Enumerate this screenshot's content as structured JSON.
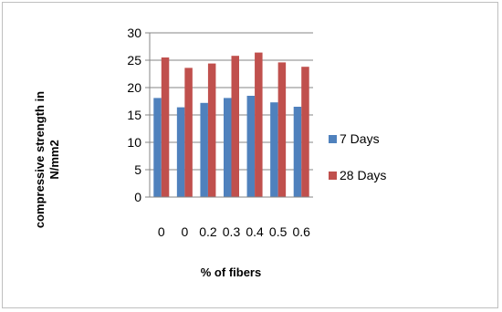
{
  "chart_data": {
    "type": "bar",
    "categories": [
      "0",
      "0",
      "0.2",
      "0.3",
      "0.4",
      "0.5",
      "0.6"
    ],
    "series": [
      {
        "name": "7 Days",
        "values": [
          18.1,
          16.4,
          17.2,
          18.1,
          18.5,
          17.3,
          16.5
        ],
        "color": "#4f81bd"
      },
      {
        "name": "28 Days",
        "values": [
          25.5,
          23.6,
          24.4,
          25.8,
          26.4,
          24.6,
          23.8
        ],
        "color": "#c0504d"
      }
    ],
    "title": "",
    "xlabel": "% of fibers",
    "ylabel": "compressive strength in N/mm2",
    "ylabel_lines": [
      "compressive strength in",
      "N/mm2"
    ],
    "ylim": [
      0,
      30
    ],
    "yticks": [
      "0",
      "5",
      "10",
      "15",
      "20",
      "25",
      "30"
    ],
    "grid": true,
    "legend_position": "right"
  }
}
